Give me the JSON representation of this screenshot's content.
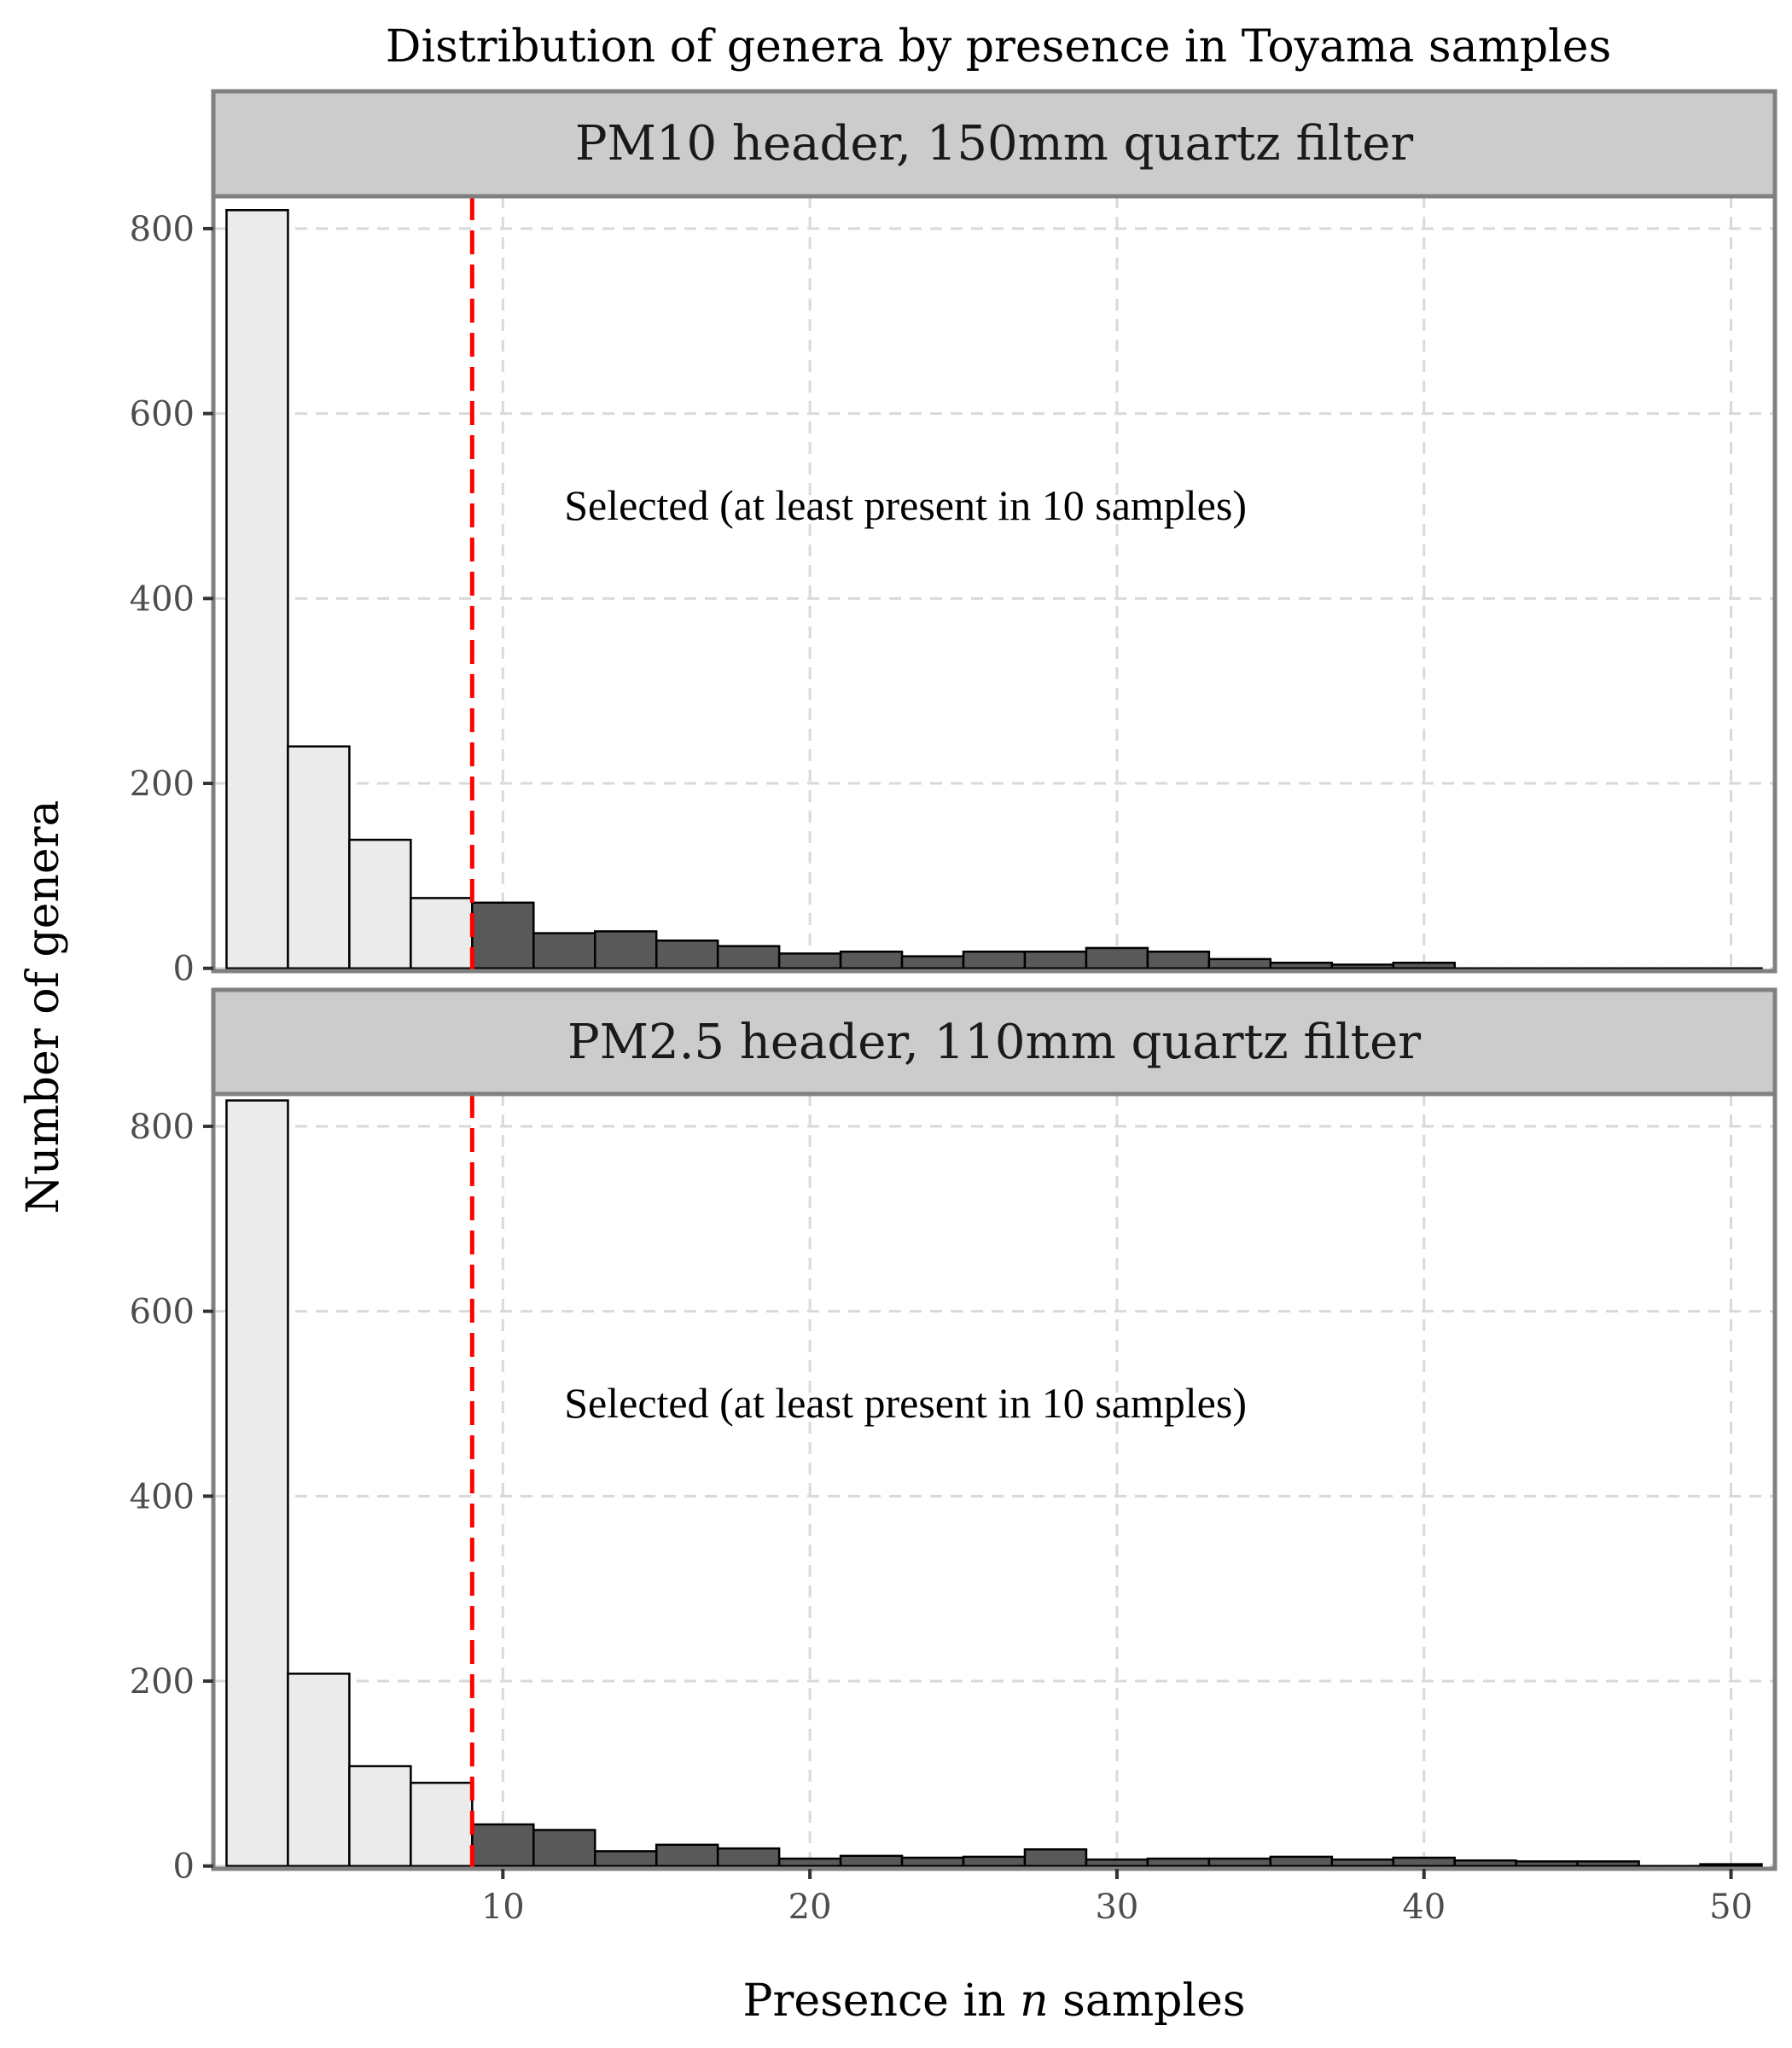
{
  "chart_data": {
    "type": "bar",
    "title": "Distribution of genera by presence in Toyama samples",
    "xlabel_prefix": "Presence in ",
    "xlabel_italic": "n",
    "xlabel_suffix": " samples",
    "ylabel": "Number of genera",
    "xlim": [
      0.57,
      51.43
    ],
    "ylim": [
      -3,
      835
    ],
    "x_ticks": [
      10,
      20,
      30,
      40,
      50
    ],
    "y_ticks": [
      0,
      200,
      400,
      600,
      800
    ],
    "grid": true,
    "bin_width": 2,
    "bin_starts": [
      1,
      3,
      5,
      7,
      9,
      11,
      13,
      15,
      17,
      19,
      21,
      23,
      25,
      27,
      29,
      31,
      33,
      35,
      37,
      39,
      41,
      43,
      45,
      47,
      49
    ],
    "threshold": 9,
    "colors": {
      "unselected": "#ebebeb",
      "selected": "#595959",
      "threshold_line": "#ff0000",
      "strip": "#cccccc",
      "border": "#808080",
      "grid": "#d9d9d9"
    },
    "panels": [
      {
        "strip": "PM10 header, 150mm quartz filter",
        "annotation": "Selected (at least present in 10 samples)",
        "values": [
          820,
          240,
          139,
          76,
          71,
          38,
          40,
          30,
          24,
          16,
          18,
          13,
          18,
          18,
          22,
          18,
          10,
          6,
          4,
          6,
          0,
          0,
          0,
          0,
          0
        ]
      },
      {
        "strip": "PM2.5 header, 110mm quartz filter",
        "annotation": "Selected (at least present in 10 samples)",
        "values": [
          828,
          208,
          108,
          90,
          45,
          39,
          16,
          23,
          19,
          8,
          11,
          9,
          10,
          18,
          7,
          8,
          8,
          10,
          7,
          9,
          6,
          5,
          5,
          0,
          2
        ]
      }
    ]
  }
}
